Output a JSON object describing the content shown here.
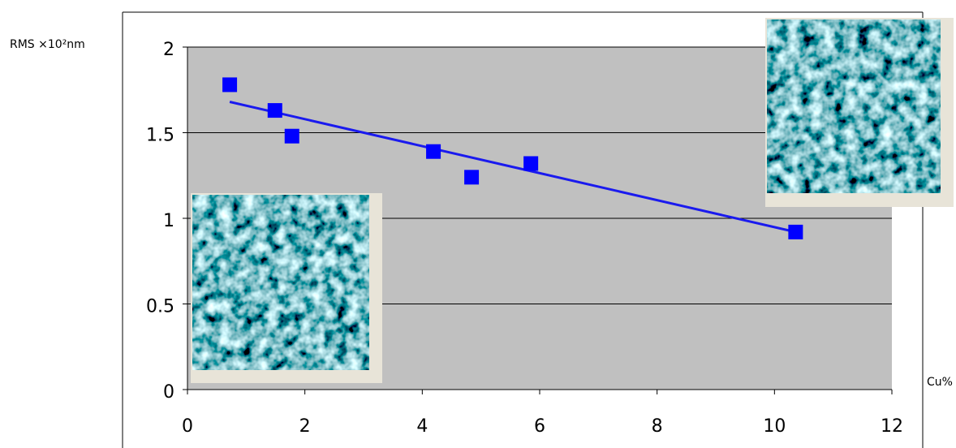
{
  "chart_data": {
    "type": "scatter",
    "ylabel": "RMS  ×10²nm",
    "xlabel": "Cu%",
    "x": [
      0.72,
      1.49,
      1.78,
      4.19,
      4.84,
      5.85,
      10.36
    ],
    "values": [
      1.78,
      1.63,
      1.48,
      1.39,
      1.24,
      1.32,
      0.92
    ],
    "color": "#0000ff",
    "trendline": {
      "x": [
        0.72,
        10.36
      ],
      "values": [
        1.68,
        0.92
      ],
      "color": "#1a1aee"
    },
    "xlim": [
      0,
      12
    ],
    "xticks": [
      0,
      2,
      4,
      6,
      8,
      10,
      12
    ],
    "ylim": [
      0,
      2
    ],
    "yticks": [
      0,
      0.5,
      1,
      1.5,
      2
    ],
    "grid": true
  }
}
